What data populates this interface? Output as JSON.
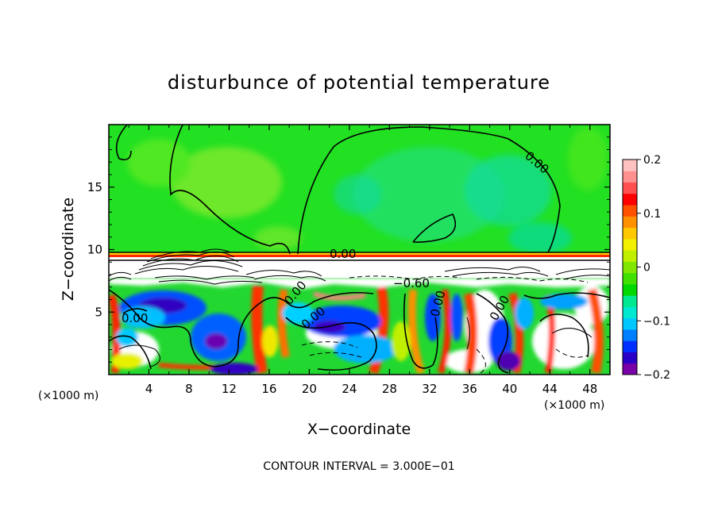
{
  "chart_data": {
    "type": "heatmap",
    "title": "disturbunce of potential temperature",
    "xlabel": "X−coordinate",
    "ylabel": "Z−coordinate",
    "x_unit": "(×1000 m)",
    "y_unit": "(×1000 m)",
    "x_range": [
      0,
      50
    ],
    "y_range": [
      0,
      20
    ],
    "x_ticks": [
      4,
      8,
      12,
      16,
      20,
      24,
      28,
      32,
      36,
      40,
      44,
      48
    ],
    "x_tick_labels": [
      "4",
      "8",
      "12",
      "16",
      "20",
      "24",
      "28",
      "32",
      "36",
      "40",
      "44",
      "48"
    ],
    "y_ticks": [
      5,
      10,
      15
    ],
    "y_tick_labels": [
      "5",
      "10",
      "15"
    ],
    "colorbar": {
      "range": [
        -0.2,
        0.2
      ],
      "ticks": [
        0.2,
        0.1,
        0,
        -0.1,
        -0.2
      ],
      "tick_labels": [
        "0.2",
        "0.1",
        "0",
        "−0.1",
        "−0.2"
      ],
      "colors": [
        "#7a00a8",
        "#2a00c8",
        "#0030ff",
        "#0080ff",
        "#00c8ff",
        "#00e8d0",
        "#00e890",
        "#00d800",
        "#40e000",
        "#80e800",
        "#c0f000",
        "#f0f000",
        "#ffc800",
        "#ff9000",
        "#ff5000",
        "#ff0000",
        "#ff5050",
        "#ff9090",
        "#ffc0c0"
      ]
    },
    "contour_labels": [
      "0.00",
      "0.00",
      "−0.60",
      "0.00",
      "0.00",
      "0.00",
      "0.00",
      "0.00"
    ],
    "footer": "CONTOUR INTERVAL = 3.000E−01",
    "grid": false
  }
}
